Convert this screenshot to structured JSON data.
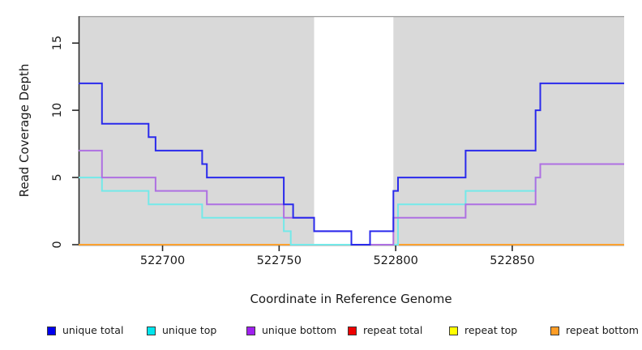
{
  "chart_data": {
    "type": "line",
    "subtype": "step",
    "title": "",
    "xlabel": "Coordinate in Reference Genome",
    "ylabel": "Read Coverage Depth",
    "xlim": [
      522664,
      522898
    ],
    "ylim": [
      0,
      17
    ],
    "x_ticks": [
      522700,
      522750,
      522800,
      522850
    ],
    "y_ticks": [
      0,
      5,
      10,
      15
    ],
    "grid": false,
    "plot_bg_color": "#d9d9d9",
    "outer_bg_color": "#ffffff",
    "axis_color": "#2b2b2b",
    "plot_top_edge_color": "#999999",
    "highlight_band": {
      "x_start": 522765,
      "x_end": 522799,
      "color": "#ffffff"
    },
    "legend_position": "bottom",
    "legend_order": [
      "unique total",
      "unique top",
      "unique bottom",
      "repeat total",
      "repeat top",
      "repeat bottom"
    ],
    "series": [
      {
        "name": "repeat total",
        "line_color": "#dd2222",
        "swatch_color": "#ee0000",
        "points": [
          [
            522664,
            0
          ]
        ]
      },
      {
        "name": "repeat top",
        "line_color": "#f5f535",
        "swatch_color": "#ffff00",
        "points": [
          [
            522664,
            0
          ]
        ]
      },
      {
        "name": "repeat bottom",
        "line_color": "#ffa230",
        "swatch_color": "#ff9d26",
        "points": [
          [
            522664,
            0
          ]
        ]
      },
      {
        "name": "unique top",
        "line_color": "#74e9e9",
        "swatch_color": "#00e5ee",
        "points": [
          [
            522664,
            5
          ],
          [
            522674,
            4
          ],
          [
            522694,
            3
          ],
          [
            522717,
            2
          ],
          [
            522752,
            1
          ],
          [
            522755,
            0
          ],
          [
            522801,
            3
          ],
          [
            522830,
            4
          ],
          [
            522860,
            5
          ],
          [
            522862,
            6
          ]
        ]
      },
      {
        "name": "unique bottom",
        "line_color": "#ae70e2",
        "swatch_color": "#a020f0",
        "points": [
          [
            522664,
            7
          ],
          [
            522674,
            5
          ],
          [
            522697,
            4
          ],
          [
            522719,
            3
          ],
          [
            522752,
            2
          ],
          [
            522765,
            1
          ],
          [
            522781,
            0
          ],
          [
            522799,
            2
          ],
          [
            522830,
            3
          ],
          [
            522860,
            5
          ],
          [
            522862,
            6
          ]
        ]
      },
      {
        "name": "unique total",
        "line_color": "#2a2aec",
        "swatch_color": "#0000ee",
        "points": [
          [
            522664,
            12
          ],
          [
            522674,
            9
          ],
          [
            522694,
            8
          ],
          [
            522697,
            7
          ],
          [
            522717,
            6
          ],
          [
            522719,
            5
          ],
          [
            522752,
            3
          ],
          [
            522756,
            2
          ],
          [
            522765,
            1
          ],
          [
            522781,
            0
          ],
          [
            522789,
            1
          ],
          [
            522799,
            4
          ],
          [
            522801,
            5
          ],
          [
            522830,
            7
          ],
          [
            522860,
            10
          ],
          [
            522862,
            12
          ]
        ]
      }
    ]
  }
}
